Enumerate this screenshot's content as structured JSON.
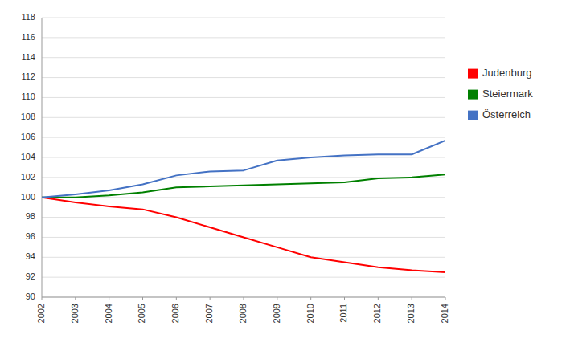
{
  "chart_data": {
    "type": "line",
    "x": [
      2002,
      2003,
      2004,
      2005,
      2006,
      2007,
      2008,
      2009,
      2010,
      2011,
      2012,
      2013,
      2014
    ],
    "series": [
      {
        "name": "Judenburg",
        "color": "#ff0000",
        "values": [
          100.0,
          99.5,
          99.1,
          98.8,
          98.0,
          97.0,
          96.0,
          95.0,
          94.0,
          93.5,
          93.0,
          92.7,
          92.5
        ]
      },
      {
        "name": "Steiermark",
        "color": "#008000",
        "values": [
          100.0,
          100.0,
          100.2,
          100.5,
          101.0,
          101.1,
          101.2,
          101.3,
          101.4,
          101.5,
          101.9,
          102.0,
          102.3
        ]
      },
      {
        "name": "Österreich",
        "color": "#4472c4",
        "values": [
          100.0,
          100.3,
          100.7,
          101.3,
          102.2,
          102.6,
          102.7,
          103.7,
          104.0,
          104.2,
          104.3,
          104.3,
          105.7
        ]
      }
    ],
    "xlim": [
      2002,
      2014
    ],
    "xticks": [
      2002,
      2003,
      2004,
      2005,
      2006,
      2007,
      2008,
      2009,
      2010,
      2011,
      2012,
      2013,
      2014
    ],
    "ylim": [
      90,
      118
    ],
    "yticks": [
      90,
      92,
      94,
      96,
      98,
      100,
      102,
      104,
      106,
      108,
      110,
      112,
      114,
      116,
      118
    ],
    "grid": true,
    "legend": "right"
  }
}
